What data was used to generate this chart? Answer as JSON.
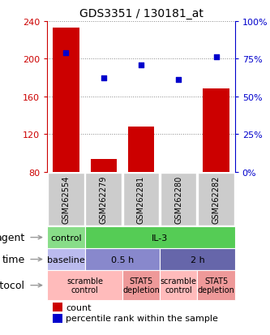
{
  "title": "GDS3351 / 130181_at",
  "samples": [
    "GSM262554",
    "GSM262279",
    "GSM262281",
    "GSM262280",
    "GSM262282"
  ],
  "counts": [
    233,
    93,
    128,
    80,
    168
  ],
  "count_base": 80,
  "percentile_ranks": [
    79,
    62,
    71,
    61,
    76
  ],
  "left_ylim": [
    80,
    240
  ],
  "left_yticks": [
    80,
    120,
    160,
    200,
    240
  ],
  "right_ylim": [
    0,
    100
  ],
  "right_yticks": [
    0,
    25,
    50,
    75,
    100
  ],
  "right_yticklabels": [
    "0%",
    "25%",
    "50%",
    "75%",
    "100%"
  ],
  "bar_color": "#cc0000",
  "dot_color": "#0000cc",
  "bg_color": "#ffffff",
  "plot_bg": "#ffffff",
  "grid_color": "#888888",
  "sample_box_color": "#cccccc",
  "agent_row": {
    "label": "agent",
    "cells": [
      {
        "text": "control",
        "colspan": 1,
        "color": "#88dd88"
      },
      {
        "text": "IL-3",
        "colspan": 4,
        "color": "#55cc55"
      }
    ]
  },
  "time_row": {
    "label": "time",
    "cells": [
      {
        "text": "baseline",
        "colspan": 1,
        "color": "#bbbbee"
      },
      {
        "text": "0.5 h",
        "colspan": 2,
        "color": "#8888cc"
      },
      {
        "text": "2 h",
        "colspan": 2,
        "color": "#6666aa"
      }
    ]
  },
  "protocol_row": {
    "label": "protocol",
    "cells": [
      {
        "text": "scramble\ncontrol",
        "colspan": 2,
        "color": "#ffbbbb"
      },
      {
        "text": "STAT5\ndepletion",
        "colspan": 1,
        "color": "#ee9999"
      },
      {
        "text": "scramble\ncontrol",
        "colspan": 1,
        "color": "#ffbbbb"
      },
      {
        "text": "STAT5\ndepletion",
        "colspan": 1,
        "color": "#ee9999"
      }
    ]
  },
  "legend_count_color": "#cc0000",
  "legend_dot_color": "#0000cc",
  "left_tick_color": "#cc0000",
  "right_tick_color": "#0000cc"
}
